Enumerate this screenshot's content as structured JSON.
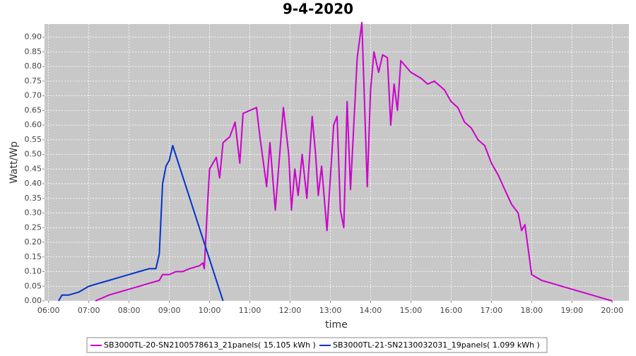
{
  "chart_data": {
    "type": "line",
    "title": "9-4-2020",
    "x_label": "time",
    "y_label": "Watt/Wp",
    "xlim": [
      "05:54",
      "20:25"
    ],
    "xticks": [
      "06:00",
      "07:00",
      "08:00",
      "09:00",
      "10:00",
      "11:00",
      "12:00",
      "13:00",
      "14:00",
      "15:00",
      "16:00",
      "17:00",
      "18:00",
      "19:00",
      "20:00"
    ],
    "ylim": [
      0,
      0.945
    ],
    "yticks": [
      {
        "value": 0,
        "label": "0.00"
      },
      {
        "value": 0.05,
        "label": "0.05"
      },
      {
        "value": 0.1,
        "label": "0.10"
      },
      {
        "value": 0.15,
        "label": "0.15"
      },
      {
        "value": 0.2,
        "label": "0.20"
      },
      {
        "value": 0.25,
        "label": "0.25"
      },
      {
        "value": 0.3,
        "label": "0.30"
      },
      {
        "value": 0.35,
        "label": "0.35"
      },
      {
        "value": 0.4,
        "label": "0.40"
      },
      {
        "value": 0.45,
        "label": "0.45"
      },
      {
        "value": 0.5,
        "label": "0.50"
      },
      {
        "value": 0.55,
        "label": "0.55"
      },
      {
        "value": 0.6,
        "label": "0.60"
      },
      {
        "value": 0.65,
        "label": "0.65"
      },
      {
        "value": 0.7,
        "label": "0.70"
      },
      {
        "value": 0.75,
        "label": "0.75"
      },
      {
        "value": 0.8,
        "label": "0.80"
      },
      {
        "value": 0.85,
        "label": "0.85"
      },
      {
        "value": 0.9,
        "label": "0.90"
      }
    ],
    "grid": true,
    "legend": "bottom",
    "series": [
      {
        "name": "SB3000TL-20-SN2100578613_21panels( 15.105 kWh )",
        "color": "#cc00cc",
        "x": [
          "07:10",
          "07:30",
          "07:45",
          "08:00",
          "08:15",
          "08:30",
          "08:45",
          "08:50",
          "09:00",
          "09:10",
          "09:20",
          "09:30",
          "09:45",
          "09:50",
          "09:52",
          "09:57",
          "10:00",
          "10:10",
          "10:15",
          "10:20",
          "10:30",
          "10:38",
          "10:45",
          "10:50",
          "11:00",
          "11:10",
          "11:15",
          "11:25",
          "11:30",
          "11:38",
          "11:50",
          "11:58",
          "12:02",
          "12:07",
          "12:12",
          "12:18",
          "12:25",
          "12:33",
          "12:38",
          "12:42",
          "12:47",
          "12:55",
          "13:05",
          "13:10",
          "13:15",
          "13:20",
          "13:25",
          "13:30",
          "13:40",
          "13:47",
          "13:55",
          "14:00",
          "14:05",
          "14:12",
          "14:18",
          "14:25",
          "14:30",
          "14:35",
          "14:40",
          "14:45",
          "15:00",
          "15:15",
          "15:25",
          "15:35",
          "15:50",
          "16:00",
          "16:10",
          "16:20",
          "16:30",
          "16:40",
          "16:50",
          "17:00",
          "17:10",
          "17:20",
          "17:30",
          "17:40",
          "17:45",
          "17:50",
          "18:00",
          "18:15",
          "18:30",
          "18:45",
          "19:00",
          "19:15",
          "19:30",
          "19:45",
          "20:00"
        ],
        "values": [
          0.0,
          0.02,
          0.03,
          0.04,
          0.05,
          0.06,
          0.07,
          0.09,
          0.09,
          0.1,
          0.1,
          0.11,
          0.12,
          0.13,
          0.11,
          0.33,
          0.45,
          0.49,
          0.42,
          0.54,
          0.56,
          0.61,
          0.47,
          0.64,
          0.65,
          0.66,
          0.56,
          0.39,
          0.54,
          0.31,
          0.66,
          0.5,
          0.31,
          0.45,
          0.36,
          0.5,
          0.35,
          0.63,
          0.5,
          0.36,
          0.46,
          0.24,
          0.6,
          0.63,
          0.31,
          0.25,
          0.68,
          0.38,
          0.83,
          0.95,
          0.39,
          0.72,
          0.85,
          0.78,
          0.84,
          0.83,
          0.6,
          0.74,
          0.65,
          0.82,
          0.78,
          0.76,
          0.74,
          0.75,
          0.72,
          0.68,
          0.66,
          0.61,
          0.59,
          0.55,
          0.53,
          0.47,
          0.43,
          0.38,
          0.33,
          0.3,
          0.24,
          0.26,
          0.09,
          0.07,
          0.06,
          0.05,
          0.04,
          0.03,
          0.02,
          0.01,
          0.0
        ]
      },
      {
        "name": "SB3000TL-21-SN2130032031_19panels( 1.099 kWh )",
        "color": "#0033cc",
        "x": [
          "06:15",
          "06:20",
          "06:30",
          "06:45",
          "07:00",
          "07:15",
          "07:30",
          "07:45",
          "08:00",
          "08:15",
          "08:30",
          "08:40",
          "08:45",
          "08:50",
          "08:55",
          "09:00",
          "09:05",
          "10:20"
        ],
        "values": [
          0.0,
          0.02,
          0.02,
          0.03,
          0.05,
          0.06,
          0.07,
          0.08,
          0.09,
          0.1,
          0.11,
          0.11,
          0.16,
          0.4,
          0.46,
          0.48,
          0.53,
          0.0
        ]
      }
    ]
  }
}
